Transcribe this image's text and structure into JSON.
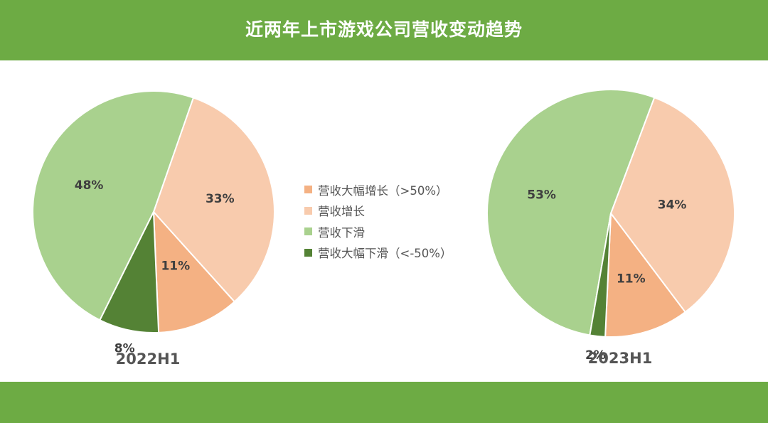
{
  "title": "近两年上市游戏公司营收变动趋势",
  "colors": {
    "header": "#6dab44",
    "strong_growth": "#f4b183",
    "growth": "#f8cbad",
    "decline": "#a9d18e",
    "strong_decline": "#548235"
  },
  "legend": [
    {
      "label": "营收大幅增长（>50%）",
      "color": "#f4b183"
    },
    {
      "label": "营收增长",
      "color": "#f8cbad"
    },
    {
      "label": "营收下滑",
      "color": "#a9d18e"
    },
    {
      "label": "营收大幅下滑（<-50%）",
      "color": "#548235"
    }
  ],
  "chart_data": [
    {
      "type": "pie",
      "caption": "2022H1",
      "slices": [
        {
          "category": "营收大幅增长（>50%）",
          "value": 11,
          "label": "11%"
        },
        {
          "category": "营收增长",
          "value": 33,
          "label": "33%"
        },
        {
          "category": "营收下滑",
          "value": 48,
          "label": "48%"
        },
        {
          "category": "营收大幅下滑（<-50%）",
          "value": 8,
          "label": "8%"
        }
      ]
    },
    {
      "type": "pie",
      "caption": "2023H1",
      "slices": [
        {
          "category": "营收大幅增长（>50%）",
          "value": 11,
          "label": "11%"
        },
        {
          "category": "营收增长",
          "value": 34,
          "label": "34%"
        },
        {
          "category": "营收下滑",
          "value": 53,
          "label": "53%"
        },
        {
          "category": "营收大幅下滑（<-50%）",
          "value": 2,
          "label": "2%"
        }
      ]
    }
  ]
}
